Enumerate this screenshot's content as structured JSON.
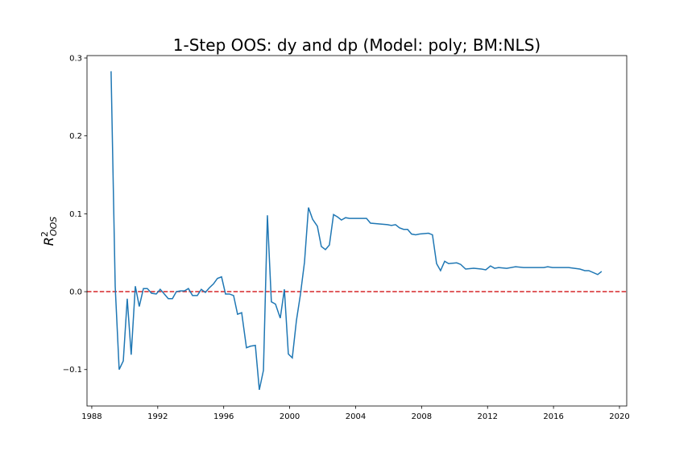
{
  "chart_data": {
    "type": "line",
    "title": "1-Step OOS: dy and dp (Model: poly; BM:NLS)",
    "ylabel": {
      "base": "R",
      "sup": "2",
      "sub": "OOS"
    },
    "color": "#1f77b4",
    "hline": {
      "value": 0,
      "color": "#d62728"
    },
    "x": [
      1989.17,
      1989.42,
      1989.66,
      1989.91,
      1990.15,
      1990.39,
      1990.64,
      1990.88,
      1991.13,
      1991.37,
      1991.62,
      1991.91,
      1992.15,
      1992.4,
      1992.64,
      1992.89,
      1993.13,
      1993.37,
      1993.62,
      1993.86,
      1994.11,
      1994.4,
      1994.64,
      1994.89,
      1995.13,
      1995.38,
      1995.62,
      1995.87,
      1996.11,
      1996.35,
      1996.6,
      1996.84,
      1997.09,
      1997.38,
      1997.62,
      1997.92,
      1998.16,
      1998.41,
      1998.65,
      1998.89,
      1999.14,
      1999.43,
      1999.68,
      1999.92,
      2000.16,
      2000.41,
      2000.65,
      2000.9,
      2001.14,
      2001.39,
      2001.68,
      2001.92,
      2002.17,
      2002.41,
      2002.66,
      2002.9,
      2003.14,
      2003.39,
      2003.63,
      2004.66,
      2004.9,
      2005.93,
      2006.17,
      2006.42,
      2006.66,
      2006.91,
      2007.15,
      2007.39,
      2007.64,
      2007.88,
      2008.42,
      2008.66,
      2008.91,
      2009.15,
      2009.4,
      2009.64,
      2010.13,
      2010.37,
      2010.67,
      2011.16,
      2011.64,
      2011.89,
      2012.18,
      2012.43,
      2012.67,
      2013.16,
      2013.7,
      2014.19,
      2015.41,
      2015.65,
      2015.94,
      2016.92,
      2017.6,
      2017.9,
      2018.14,
      2018.68,
      2018.92
    ],
    "values": [
      0.283,
      0.007,
      -0.1,
      -0.089,
      -0.009,
      -0.081,
      0.007,
      -0.019,
      0.004,
      0.004,
      -0.002,
      -0.003,
      0.003,
      -0.003,
      -0.009,
      -0.009,
      0.0,
      0.001,
      0.001,
      0.004,
      -0.005,
      -0.005,
      0.003,
      -0.001,
      0.005,
      0.01,
      0.017,
      0.019,
      -0.003,
      -0.003,
      -0.005,
      -0.029,
      -0.027,
      -0.072,
      -0.07,
      -0.069,
      -0.126,
      -0.101,
      0.098,
      -0.013,
      -0.016,
      -0.034,
      0.003,
      -0.08,
      -0.085,
      -0.037,
      -0.004,
      0.038,
      0.108,
      0.093,
      0.084,
      0.058,
      0.054,
      0.06,
      0.099,
      0.096,
      0.092,
      0.095,
      0.094,
      0.094,
      0.088,
      0.086,
      0.085,
      0.086,
      0.082,
      0.08,
      0.08,
      0.074,
      0.073,
      0.074,
      0.075,
      0.073,
      0.036,
      0.027,
      0.039,
      0.036,
      0.037,
      0.035,
      0.029,
      0.03,
      0.029,
      0.028,
      0.033,
      0.03,
      0.031,
      0.03,
      0.032,
      0.031,
      0.031,
      0.032,
      0.031,
      0.031,
      0.029,
      0.027,
      0.027,
      0.022,
      0.026
    ],
    "xlim": [
      1987.71,
      2020.44
    ],
    "ylim": [
      -0.1468,
      0.3031
    ],
    "xticks": [
      1988,
      1992,
      1996,
      2000,
      2004,
      2008,
      2012,
      2016,
      2020
    ],
    "yticks": [
      {
        "value": -0.1,
        "label": "−0.1"
      },
      {
        "value": 0,
        "label": "0.0"
      },
      0.1,
      0.2,
      0.3
    ],
    "grid": false
  }
}
